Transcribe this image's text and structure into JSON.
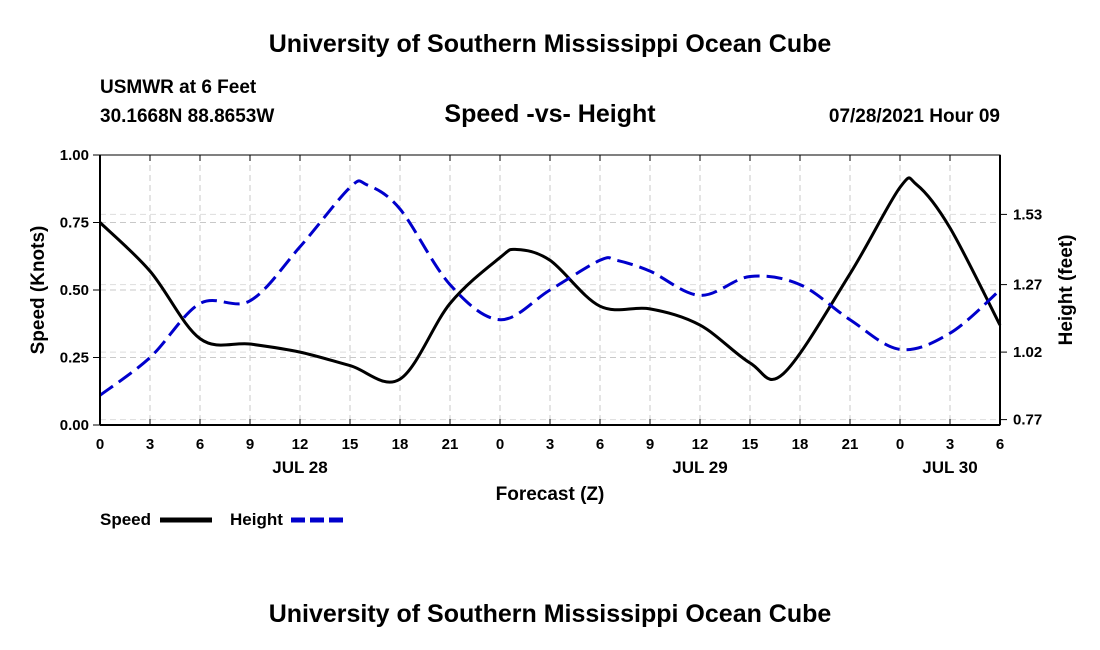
{
  "header": {
    "title": "University of Southern Mississippi Ocean Cube",
    "station": "USMWR at 6 Feet",
    "coordinates": "30.1668N  88.8653W",
    "chart_title": "Speed -vs- Height",
    "run_time": "07/28/2021 Hour 09"
  },
  "footer": {
    "title": "University of Southern Mississippi Ocean Cube"
  },
  "colors": {
    "speed": "#000000",
    "height": "#0000cc",
    "grid": "#c8c8c8"
  },
  "chart_data": {
    "type": "line",
    "title": "Speed -vs- Height",
    "xlabel": "Forecast (Z)",
    "ylabel": "Speed (Knots)",
    "y2label": "Height (feet)",
    "xlim": [
      0,
      54
    ],
    "ylim": [
      0,
      1
    ],
    "y2lim": [
      0.75,
      1.75
    ],
    "grid": true,
    "legend": "bottom-left",
    "x_ticks": [
      0,
      3,
      6,
      9,
      12,
      15,
      18,
      21,
      24,
      27,
      30,
      33,
      36,
      39,
      42,
      45,
      48,
      51,
      54
    ],
    "x_tick_labels": [
      "0",
      "3",
      "6",
      "9",
      "12",
      "15",
      "18",
      "21",
      "0",
      "3",
      "6",
      "9",
      "12",
      "15",
      "18",
      "21",
      "0",
      "3",
      "6"
    ],
    "y_ticks": [
      0,
      0.25,
      0.5,
      0.75,
      1.0
    ],
    "y_tick_labels": [
      "0.00",
      "0.25",
      "0.50",
      "0.75",
      "1.00"
    ],
    "y2_ticks": [
      0.77,
      1.02,
      1.27,
      1.53
    ],
    "y2_tick_labels": [
      "0.77",
      "1.02",
      "1.27",
      "1.53"
    ],
    "date_labels": [
      {
        "label": "JUL 28",
        "x": 12
      },
      {
        "label": "JUL 29",
        "x": 36
      },
      {
        "label": "JUL 30",
        "x": 51
      }
    ],
    "series": [
      {
        "name": "Speed",
        "axis": "left",
        "style": "solid",
        "x": [
          0,
          3,
          6,
          9,
          12,
          15,
          18,
          21,
          24,
          25,
          27,
          30,
          33,
          36,
          39,
          41,
          45,
          48,
          49,
          51,
          54
        ],
        "y": [
          0.75,
          0.57,
          0.32,
          0.3,
          0.27,
          0.22,
          0.17,
          0.45,
          0.62,
          0.65,
          0.61,
          0.44,
          0.43,
          0.37,
          0.23,
          0.19,
          0.56,
          0.88,
          0.89,
          0.73,
          0.37
        ]
      },
      {
        "name": "Height",
        "axis": "right",
        "style": "dashed",
        "x": [
          0,
          3,
          6,
          9,
          12,
          15,
          16,
          18,
          21,
          24,
          27,
          30,
          31,
          33,
          36,
          39,
          42,
          45,
          48,
          51,
          54
        ],
        "y": [
          0.86,
          1.0,
          1.2,
          1.21,
          1.41,
          1.63,
          1.64,
          1.55,
          1.27,
          1.14,
          1.25,
          1.36,
          1.36,
          1.32,
          1.23,
          1.3,
          1.27,
          1.14,
          1.03,
          1.09,
          1.25
        ]
      }
    ]
  }
}
